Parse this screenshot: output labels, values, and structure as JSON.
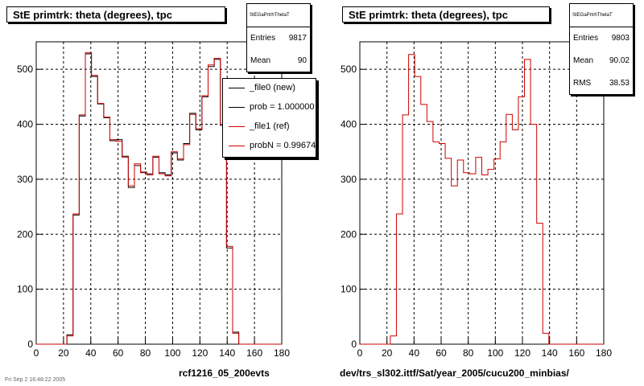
{
  "chart_data": [
    {
      "type": "histogram",
      "title": "StE primtrk: theta (degrees), tpc",
      "xlabel": "",
      "ylabel": "",
      "xlim": [
        0,
        180
      ],
      "ylim": [
        0,
        550
      ],
      "x_ticks": [
        0,
        20,
        40,
        60,
        80,
        100,
        120,
        140,
        160,
        180
      ],
      "y_ticks": [
        0,
        100,
        200,
        300,
        400,
        500
      ],
      "grid": true,
      "bin_width": 4.5,
      "bin_edges_start": 22.5,
      "series": [
        {
          "name": "_file0 (new)",
          "color": "#000000",
          "values": [
            17,
            235,
            415,
            528,
            487,
            437,
            412,
            370,
            372,
            342,
            285,
            325,
            313,
            310,
            340,
            312,
            308,
            348,
            335,
            365,
            420,
            390,
            450,
            505,
            518,
            398,
            175,
            22
          ]
        },
        {
          "name": "_file1 (ref)",
          "color": "#cc0000",
          "values": [
            15,
            237,
            417,
            530,
            489,
            438,
            413,
            372,
            369,
            340,
            288,
            328,
            312,
            308,
            342,
            310,
            306,
            350,
            337,
            363,
            418,
            392,
            452,
            508,
            520,
            400,
            178,
            20
          ]
        }
      ],
      "stats": {
        "title": "StEGaPrtrhThetaT",
        "entries_label": "Entries",
        "entries": "9817",
        "mean_label": "Mean",
        "mean": "90"
      },
      "legend": {
        "placement": "top-right",
        "entries": [
          {
            "label": "_file0 (new)",
            "color": "#000000"
          },
          {
            "label": "prob = 1.000000",
            "color": "#000000"
          },
          {
            "label": "_file1 (ref)",
            "color": "#cc0000"
          },
          {
            "label": "probN = 0.99674",
            "color": "#cc0000"
          }
        ]
      },
      "footer": "rcf1216_05_200evts"
    },
    {
      "type": "histogram",
      "title": "StE primtrk: theta (degrees), tpc",
      "xlabel": "",
      "ylabel": "",
      "xlim": [
        0,
        180
      ],
      "ylim": [
        0,
        550
      ],
      "x_ticks": [
        0,
        20,
        40,
        60,
        80,
        100,
        120,
        140,
        160,
        180
      ],
      "y_ticks": [
        0,
        100,
        200,
        300,
        400,
        500
      ],
      "grid": true,
      "bin_width": 4.5,
      "bin_edges_start": 22.5,
      "series": [
        {
          "name": "",
          "color": "#cc0000",
          "values": [
            15,
            237,
            417,
            527,
            487,
            436,
            405,
            368,
            365,
            338,
            288,
            335,
            312,
            310,
            340,
            308,
            318,
            337,
            368,
            418,
            390,
            450,
            518,
            400,
            220,
            20
          ]
        }
      ],
      "stats": {
        "title": "StEGaPrtrhThetaT",
        "entries_label": "Entries",
        "entries": "9803",
        "mean_label": "Mean",
        "mean": "90.02",
        "rms_label": "RMS",
        "rms": "38.53"
      },
      "footer": "dev/trs_sl302.ittf/Sat/year_2005/cucu200_minbias/"
    }
  ],
  "corner_text": "Fri Sep  2 16:48:22 2005"
}
